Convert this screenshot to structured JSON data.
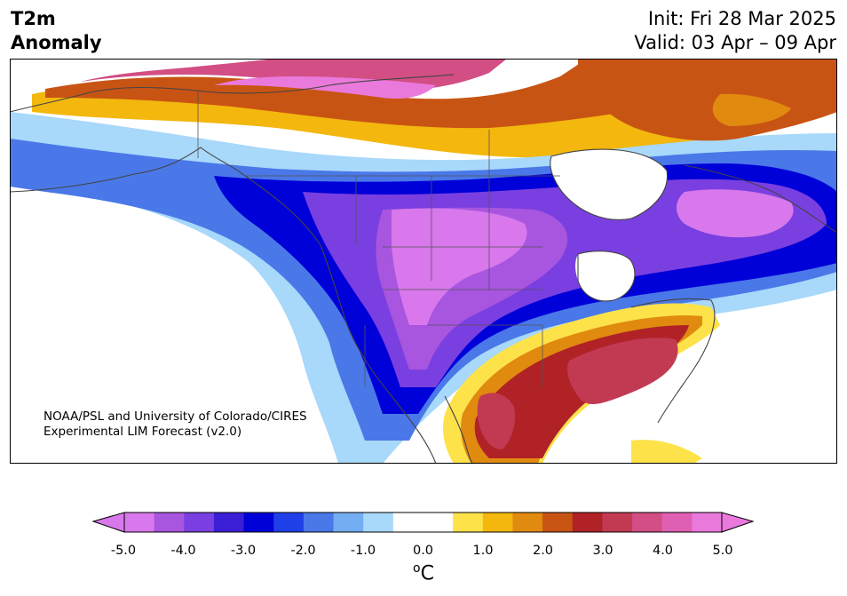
{
  "title": {
    "line1": "T2m",
    "line2": "Anomaly"
  },
  "forecast": {
    "init": "Init: Fri 28 Mar 2025",
    "valid": "Valid: 03 Apr – 09 Apr"
  },
  "credit": {
    "line1": "NOAA/PSL and University of Colorado/CIRES",
    "line2": "Experimental LIM Forecast (v2.0)"
  },
  "colorbar": {
    "ticks": [
      "-5.0",
      "-4.0",
      "-3.0",
      "-2.0",
      "-1.0",
      "0.0",
      "1.0",
      "2.0",
      "3.0",
      "4.0",
      "5.0"
    ],
    "unit_base": "C",
    "unit_sup": "o",
    "colors": [
      "#d878ec",
      "#a855e0",
      "#7a3fe0",
      "#3a1fd6",
      "#0000d8",
      "#1f3fe8",
      "#4a78e8",
      "#73aef2",
      "#a8d8fa",
      "#ffffff",
      "#ffffff",
      "#fde24a",
      "#f3b70e",
      "#e08a10",
      "#c85414",
      "#b02226",
      "#c23a52",
      "#d24e84",
      "#df60b2",
      "#ea79dc"
    ]
  }
}
